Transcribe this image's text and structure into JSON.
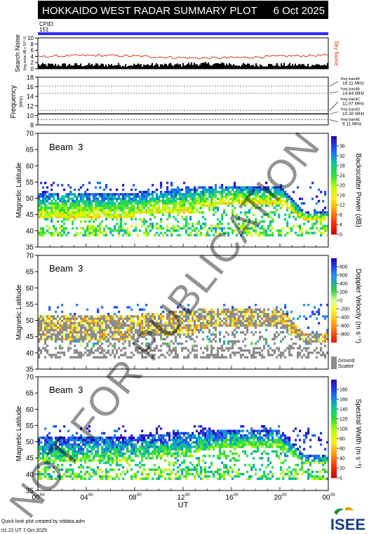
{
  "header": {
    "title": "HOKKAIDO WEST RADAR SUMMARY PLOT",
    "date": "6 Oct 2025",
    "cpid_label": "CPID:",
    "cpid_value": "151"
  },
  "watermark": "NOT FOR PUBLICATION",
  "footer": {
    "note": "Quick look plot created by sddata.adm",
    "timestamp": "01:22 UT 7 Oct 2025",
    "logo_text": "ISEE"
  },
  "colors": {
    "title_bar": "#000000",
    "cpid_bar": "#2a2aff",
    "noise_search": "#000000",
    "noise_sky": "#d83a1e",
    "ground_scatter": "#8c8c8c"
  },
  "chart_data": [
    {
      "type": "area",
      "name": "noise",
      "ylabel": "Search Noise",
      "ylabel_units": "(log.noise.dB x 10^-1)",
      "ylabel_right": "Sky Noise",
      "yticks": [
        "0",
        "2",
        "4",
        "6",
        "8",
        "10"
      ],
      "ylim": [
        0,
        10
      ],
      "search_noise_level": 1.2,
      "sky_noise_level": 3.9
    },
    {
      "type": "line",
      "name": "frequency",
      "ylabel": "Frequency",
      "ylabel_units": "(MHz)",
      "ylim": [
        8,
        18
      ],
      "yticks": [
        "8",
        "10",
        "12",
        "14",
        "16",
        "18"
      ],
      "bands": [
        {
          "label": "freq bandA",
          "value_label": "16.11 MHz",
          "value": 16.11
        },
        {
          "label": "freq bandB",
          "value_label": "14.64 MHz",
          "value": 14.64
        },
        {
          "label": "freq bandC",
          "value_label": "11.07 MHz",
          "value": 11.07
        },
        {
          "label": "freq bandD",
          "value_label": "10.30 MHz",
          "value": 10.3
        },
        {
          "label": "freq bandE",
          "value_label": "9.11 MHz",
          "value": 9.11
        }
      ],
      "active_value": 10.3
    },
    {
      "type": "heatmap",
      "name": "power",
      "beam": "Beam  3",
      "ylabel": "Magnetic Latitude",
      "ylim": [
        35,
        70
      ],
      "yticks": [
        "35",
        "40",
        "45",
        "50",
        "55",
        "60",
        "65",
        "70"
      ],
      "colorbar_label": "Backscatter Power (dB)",
      "colorbar_ticks": [
        "0",
        "4",
        "8",
        "12",
        "16",
        "20",
        "24",
        "28",
        "32",
        "36"
      ],
      "colorbar_range": [
        0,
        40
      ]
    },
    {
      "type": "heatmap",
      "name": "velocity",
      "beam": "Beam  3",
      "ylabel": "Magnetic Latitude",
      "ylim": [
        35,
        70
      ],
      "yticks": [
        "35",
        "40",
        "45",
        "50",
        "55",
        "60",
        "65",
        "70"
      ],
      "colorbar_label": "Doppler Velocity (m s⁻¹)",
      "colorbar_ticks": [
        "-800",
        "-600",
        "-400",
        "-200",
        "0",
        "200",
        "400",
        "600",
        "800"
      ],
      "colorbar_range": [
        -1000,
        1000
      ],
      "ground_scatter_label": [
        "Ground",
        "Scatter"
      ]
    },
    {
      "type": "heatmap",
      "name": "width",
      "beam": "Beam  3",
      "ylabel": "Magnetic Latitude",
      "ylim": [
        35,
        70
      ],
      "yticks": [
        "35",
        "40",
        "45",
        "50",
        "55",
        "60",
        "65",
        "70"
      ],
      "colorbar_label": "Spectral Width (m s⁻¹)",
      "colorbar_ticks": [
        "0",
        "20",
        "40",
        "60",
        "80",
        "100",
        "120",
        "140",
        "160",
        "180"
      ],
      "colorbar_range": [
        0,
        200
      ]
    }
  ],
  "xaxis": {
    "label": "UT",
    "ticks": [
      "00",
      "04",
      "08",
      "12",
      "16",
      "20",
      "00"
    ],
    "tick_sup": "00",
    "xlim": [
      0,
      24
    ]
  }
}
